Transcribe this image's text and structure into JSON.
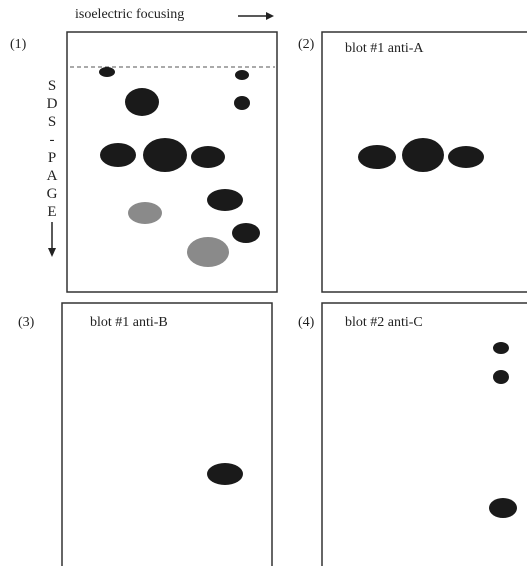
{
  "header": {
    "axis_x": "isoelectric focusing",
    "axis_y": "SDS-PAGE"
  },
  "panels": [
    {
      "label": "(1)"
    },
    {
      "label": "(2)",
      "title": "blot #1  anti-A"
    },
    {
      "label": "(3)",
      "title": "blot #1  anti-B"
    },
    {
      "label": "(4)",
      "title": "blot #2  anti-C"
    }
  ]
}
